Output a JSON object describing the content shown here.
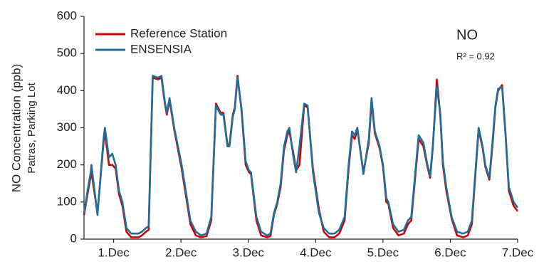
{
  "chart_data": {
    "type": "line",
    "y_label": "NO Concentration (ppb)",
    "y_sublabel": "Patras, Parking Lot",
    "annotation": "NO",
    "r_squared": "R² = 0.92",
    "xlim": [
      0.56,
      7.0
    ],
    "ylim": [
      0,
      600
    ],
    "xticks": [
      {
        "value": 1,
        "label": "1.Dec"
      },
      {
        "value": 2,
        "label": "2.Dec"
      },
      {
        "value": 3,
        "label": "3.Dec"
      },
      {
        "value": 4,
        "label": "4.Dec"
      },
      {
        "value": 5,
        "label": "5.Dec"
      },
      {
        "value": 6,
        "label": "6.Dec"
      },
      {
        "value": 7,
        "label": "7.Dec"
      }
    ],
    "yticks": [
      0,
      100,
      200,
      300,
      400,
      500,
      600
    ],
    "legend": "top-left",
    "x": [
      0.56,
      0.63,
      0.66,
      0.67,
      0.76,
      0.85,
      0.87,
      0.93,
      0.98,
      1.03,
      1.08,
      1.13,
      1.19,
      1.26,
      1.37,
      1.42,
      1.48,
      1.52,
      1.58,
      1.66,
      1.71,
      1.76,
      1.79,
      1.83,
      1.9,
      2.01,
      2.08,
      2.14,
      2.22,
      2.3,
      2.38,
      2.45,
      2.52,
      2.59,
      2.63,
      2.69,
      2.72,
      2.77,
      2.8,
      2.84,
      2.9,
      2.96,
      3.01,
      3.04,
      3.12,
      3.19,
      3.28,
      3.33,
      3.38,
      3.43,
      3.48,
      3.53,
      3.58,
      3.61,
      3.67,
      3.71,
      3.76,
      3.83,
      3.88,
      3.96,
      4.05,
      4.12,
      4.2,
      4.28,
      4.35,
      4.43,
      4.49,
      4.54,
      4.58,
      4.62,
      4.71,
      4.79,
      4.83,
      4.88,
      4.95,
      5.0,
      5.05,
      5.08,
      5.15,
      5.23,
      5.31,
      5.37,
      5.42,
      5.53,
      5.6,
      5.66,
      5.7,
      5.74,
      5.8,
      5.85,
      5.89,
      5.94,
      6.02,
      6.1,
      6.19,
      6.26,
      6.32,
      6.42,
      6.48,
      6.52,
      6.58,
      6.63,
      6.67,
      6.71,
      6.77,
      6.82,
      6.87,
      6.94,
      7.0
    ],
    "series": [
      {
        "name": "Reference Station",
        "color": "#cc0000",
        "values": [
          65,
          140,
          170,
          180,
          70,
          260,
          290,
          200,
          200,
          190,
          120,
          90,
          20,
          5,
          5,
          10,
          20,
          25,
          435,
          430,
          435,
          365,
          335,
          375,
          295,
          190,
          110,
          40,
          10,
          5,
          8,
          50,
          365,
          340,
          340,
          255,
          255,
          335,
          355,
          440,
          345,
          200,
          180,
          175,
          50,
          10,
          5,
          8,
          65,
          95,
          140,
          240,
          280,
          290,
          230,
          185,
          200,
          360,
          355,
          190,
          80,
          20,
          5,
          5,
          15,
          50,
          190,
          280,
          270,
          295,
          180,
          260,
          370,
          285,
          245,
          195,
          100,
          95,
          30,
          10,
          15,
          40,
          50,
          270,
          250,
          195,
          165,
          245,
          430,
          335,
          200,
          130,
          55,
          10,
          5,
          10,
          40,
          295,
          245,
          195,
          160,
          260,
          355,
          400,
          415,
          285,
          130,
          90,
          75
        ]
      },
      {
        "name": "ENSENSIA",
        "color": "#1f6e99",
        "values": [
          70,
          150,
          180,
          200,
          65,
          270,
          300,
          220,
          230,
          200,
          130,
          100,
          30,
          15,
          15,
          20,
          30,
          35,
          440,
          435,
          440,
          370,
          340,
          380,
          300,
          200,
          120,
          50,
          20,
          10,
          15,
          60,
          360,
          335,
          335,
          250,
          250,
          330,
          350,
          435,
          350,
          210,
          185,
          180,
          60,
          20,
          10,
          15,
          70,
          100,
          150,
          250,
          290,
          300,
          220,
          180,
          250,
          365,
          360,
          180,
          70,
          30,
          15,
          15,
          25,
          60,
          200,
          290,
          280,
          300,
          175,
          270,
          380,
          290,
          250,
          200,
          110,
          100,
          40,
          20,
          25,
          50,
          60,
          280,
          260,
          200,
          170,
          250,
          410,
          340,
          210,
          140,
          60,
          20,
          15,
          20,
          50,
          300,
          250,
          200,
          165,
          270,
          360,
          405,
          410,
          280,
          140,
          100,
          85
        ]
      }
    ]
  }
}
